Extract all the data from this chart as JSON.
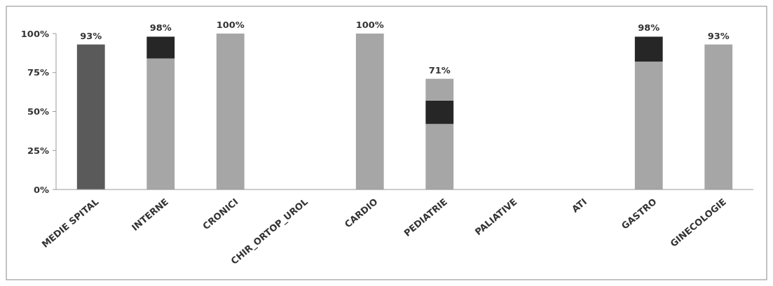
{
  "chart_data": {
    "type": "bar",
    "stacked": true,
    "categories": [
      "MEDIE SPITAL",
      "INTERNE",
      "CRONICI",
      "CHIR_ORTOP_UROL",
      "CARDIO",
      "PEDIATRIE",
      "PALIATIVE",
      "ATI",
      "GASTRO",
      "GINECOLOGIE"
    ],
    "series": [
      {
        "color": "#5a5a5a",
        "values": [
          93,
          null,
          null,
          null,
          null,
          null,
          null,
          null,
          null,
          null
        ]
      },
      {
        "color": "#a6a6a6",
        "values": [
          null,
          84,
          100,
          null,
          100,
          42,
          null,
          null,
          82,
          93
        ]
      },
      {
        "color": "#262626",
        "values": [
          null,
          14,
          null,
          null,
          null,
          15,
          null,
          null,
          16,
          null
        ]
      },
      {
        "color": "#a6a6a6",
        "values": [
          null,
          null,
          null,
          null,
          null,
          14,
          null,
          null,
          null,
          null
        ]
      }
    ],
    "totals": [
      "93%",
      "98%",
      "100%",
      null,
      "100%",
      "71%",
      null,
      null,
      "98%",
      "93%"
    ],
    "ylim": [
      0,
      100
    ],
    "yticks": [
      {
        "value": 0,
        "label": "0%"
      },
      {
        "value": 25,
        "label": "25%"
      },
      {
        "value": 50,
        "label": "50%"
      },
      {
        "value": 75,
        "label": "75%"
      },
      {
        "value": 100,
        "label": "100%"
      }
    ],
    "grid": false
  }
}
